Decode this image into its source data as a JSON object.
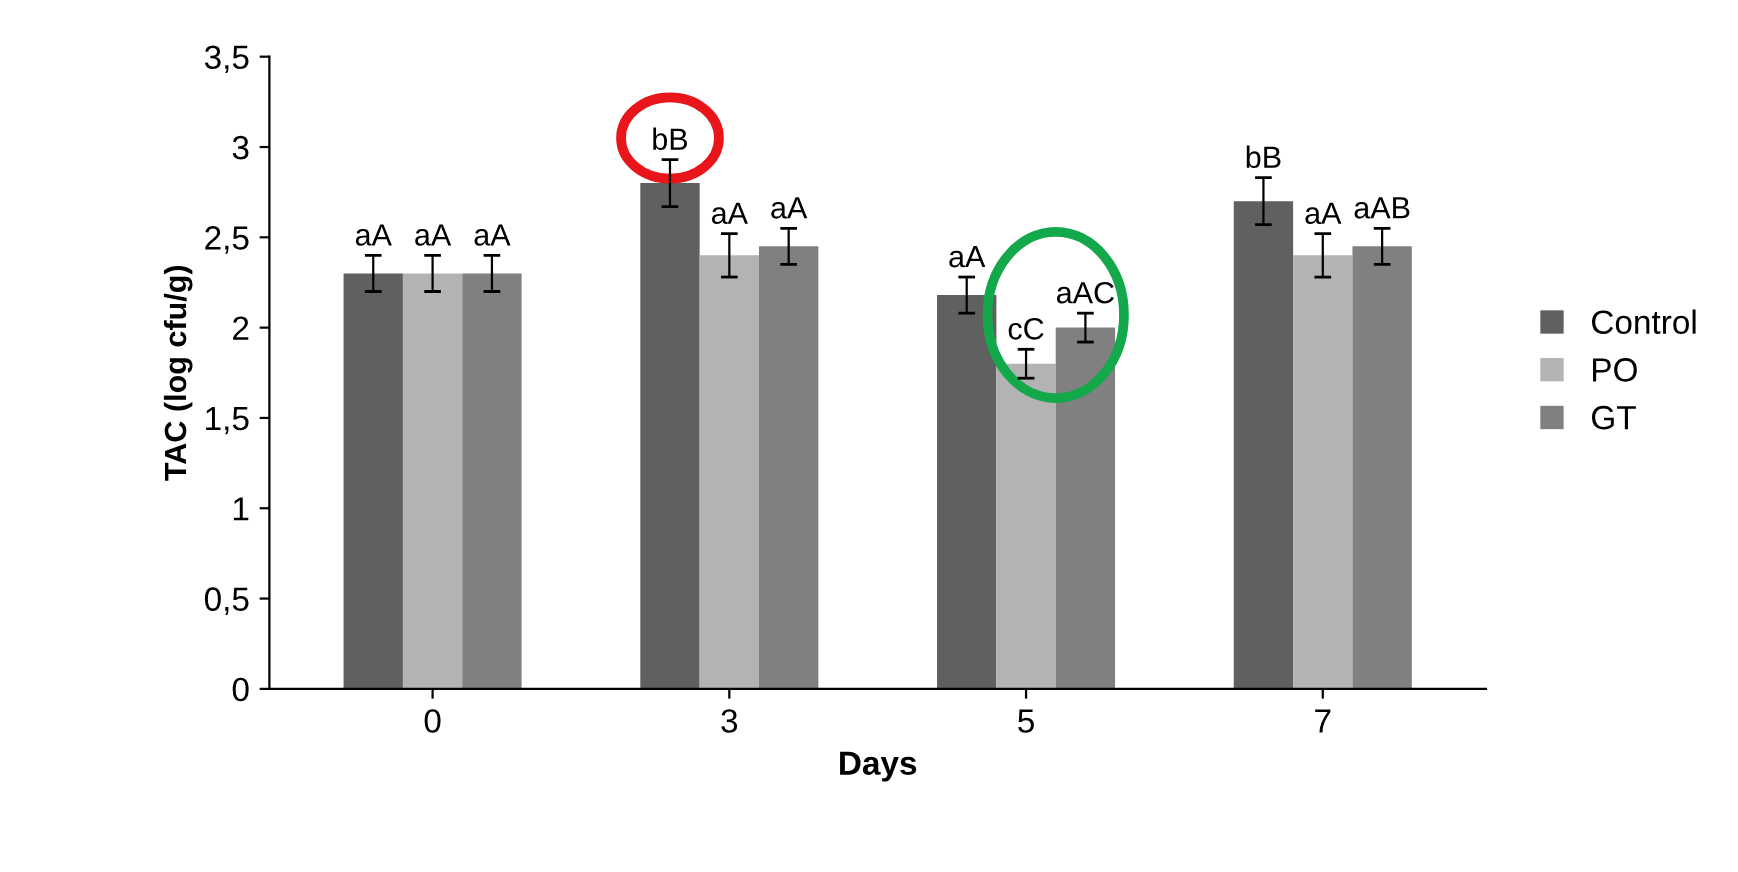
{
  "chart_data": {
    "type": "bar",
    "xlabel": "Days",
    "ylabel": "TAC (log cfu/g)",
    "categories": [
      "0",
      "3",
      "5",
      "7"
    ],
    "series": [
      {
        "name": "Control",
        "color": "#606060",
        "values": [
          2.3,
          2.8,
          2.18,
          2.7
        ],
        "errors": [
          0.1,
          0.13,
          0.1,
          0.13
        ],
        "value_labels": [
          "aA",
          "bB",
          "aA",
          "bB"
        ]
      },
      {
        "name": "PO",
        "color": "#b3b3b3",
        "values": [
          2.3,
          2.4,
          1.8,
          2.4
        ],
        "errors": [
          0.1,
          0.12,
          0.08,
          0.12
        ],
        "value_labels": [
          "aA",
          "aA",
          "cC",
          "aA"
        ]
      },
      {
        "name": "GT",
        "color": "#808080",
        "values": [
          2.3,
          2.45,
          2.0,
          2.45
        ],
        "errors": [
          0.1,
          0.1,
          0.08,
          0.1
        ],
        "value_labels": [
          "aA",
          "aA",
          "aAC",
          "aAB"
        ]
      }
    ],
    "ylim": [
      0,
      3.5
    ],
    "yticks": [
      0,
      {
        "value": 0.5,
        "label": "0,5"
      },
      1,
      {
        "value": 1.5,
        "label": "1,5"
      },
      2,
      {
        "value": 2.5,
        "label": "2,5"
      },
      3,
      {
        "value": 3.5,
        "label": "3,5"
      }
    ],
    "grid": false,
    "legend": "right"
  }
}
